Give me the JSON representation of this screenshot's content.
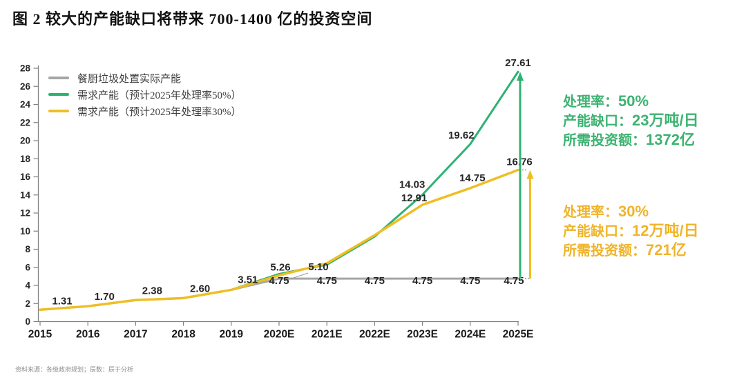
{
  "title": "图 2 较大的产能缺口将带来 700-1400 亿的投资空间",
  "footer": "资料来源：各级政府规划；辰数：辰于分析",
  "colors": {
    "green": "#2EB272",
    "yellow": "#F0BE23",
    "gray": "#A6A6A6",
    "green_text": "#3CB371",
    "yellow_text": "#F0B429",
    "axis": "#808080",
    "label_text": "#262626"
  },
  "legend": [
    {
      "label": "餐厨垃圾处置实际产能",
      "color": "#A6A6A6"
    },
    {
      "label": "需求产能（预计2025年处理率50%）",
      "color": "#2EB272"
    },
    {
      "label": "需求产能（预计2025年处理率30%）",
      "color": "#F0BE23"
    }
  ],
  "annotation_green": {
    "lines": [
      {
        "label": "处理率：",
        "value": "50%"
      },
      {
        "label": "产能缺口：",
        "value": "23万吨/日"
      },
      {
        "label": "所需投资额：",
        "value": "1372亿"
      }
    ]
  },
  "annotation_yellow": {
    "lines": [
      {
        "label": "处理率：",
        "value": "30%"
      },
      {
        "label": "产能缺口：",
        "value": "12万吨/日"
      },
      {
        "label": "所需投资额：",
        "value": "721亿"
      }
    ]
  },
  "chart_data": {
    "type": "line",
    "title": "图 2 较大的产能缺口将带来 700-1400 亿的投资空间",
    "categories": [
      "2015",
      "2016",
      "2017",
      "2018",
      "2019",
      "2020E",
      "2021E",
      "2022E",
      "2023E",
      "2024E",
      "2025E"
    ],
    "series": [
      {
        "key": "gray",
        "name": "餐厨垃圾处置实际产能",
        "color": "#A6A6A6",
        "values": [
          1.31,
          1.7,
          2.38,
          2.6,
          3.51,
          4.75,
          4.75,
          4.75,
          4.75,
          4.75,
          4.75
        ]
      },
      {
        "key": "green",
        "name": "需求产能（预计2025年处理率50%）",
        "color": "#2EB272",
        "values": [
          1.31,
          1.7,
          2.38,
          2.6,
          3.51,
          5.26,
          6.3,
          9.4,
          14.03,
          19.62,
          27.61
        ]
      },
      {
        "key": "yellow",
        "name": "需求产能（预计2025年处理率30%）",
        "color": "#F0BE23",
        "values": [
          1.31,
          1.7,
          2.38,
          2.6,
          3.51,
          5.1,
          6.45,
          9.55,
          12.91,
          14.75,
          16.76
        ]
      }
    ],
    "ylim": [
      0,
      28
    ],
    "ytick_step": 2,
    "grid": false,
    "legend_position": "top-left",
    "point_labels": [
      {
        "series": "shared",
        "i": 0,
        "text": "1.31"
      },
      {
        "series": "shared",
        "i": 1,
        "text": "1.70"
      },
      {
        "series": "shared",
        "i": 2,
        "text": "2.38"
      },
      {
        "series": "shared",
        "i": 3,
        "text": "2.60"
      },
      {
        "series": "shared",
        "i": 4,
        "text": "3.51"
      },
      {
        "series": "green",
        "i": 5,
        "text": "5.26"
      },
      {
        "series": "yellow",
        "i": 5,
        "text": "5.10"
      },
      {
        "series": "gray",
        "i": 5,
        "text": "4.75"
      },
      {
        "series": "gray",
        "i": 6,
        "text": "4.75"
      },
      {
        "series": "gray",
        "i": 7,
        "text": "4.75"
      },
      {
        "series": "gray",
        "i": 8,
        "text": "4.75"
      },
      {
        "series": "gray",
        "i": 9,
        "text": "4.75"
      },
      {
        "series": "gray",
        "i": 10,
        "text": "4.75"
      },
      {
        "series": "green",
        "i": 8,
        "text": "14.03"
      },
      {
        "series": "yellow",
        "i": 8,
        "text": "12.91"
      },
      {
        "series": "green",
        "i": 9,
        "text": "19.62"
      },
      {
        "series": "yellow",
        "i": 9,
        "text": "14.75"
      },
      {
        "series": "green",
        "i": 10,
        "text": "27.61"
      },
      {
        "series": "yellow",
        "i": 10,
        "text": "16.76"
      }
    ],
    "gap_arrows": [
      {
        "color_key": "green",
        "category": "2025E",
        "from": 4.75,
        "to": 27.61
      },
      {
        "color_key": "yellow",
        "category": "2025E",
        "from": 4.75,
        "to": 16.76
      }
    ]
  }
}
